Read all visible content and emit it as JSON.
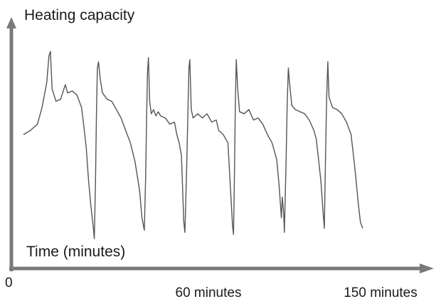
{
  "chart_data": {
    "type": "line",
    "ylabel": "Heating capacity",
    "xlabel": "Time (minutes)",
    "x_ticks": [
      {
        "label": "0",
        "value": 0
      },
      {
        "label": "60 minutes",
        "value": 60
      },
      {
        "label": "150 minutes",
        "value": 150
      }
    ],
    "y_tick_labels_shown": false,
    "grid": false,
    "axis_color": "#7a7a7a",
    "line_color": "#555555",
    "series": [
      {
        "points": [
          [
            0,
            50
          ],
          [
            3,
            52
          ],
          [
            6,
            55
          ],
          [
            8,
            63
          ],
          [
            10,
            75
          ],
          [
            11,
            88
          ],
          [
            11.6,
            90
          ],
          [
            12.3,
            72
          ],
          [
            14,
            66
          ],
          [
            16,
            67
          ],
          [
            18,
            74
          ],
          [
            19,
            70
          ],
          [
            21,
            71
          ],
          [
            23,
            69
          ],
          [
            25,
            63
          ],
          [
            26,
            54
          ],
          [
            27,
            44
          ],
          [
            28,
            28
          ],
          [
            29,
            16
          ],
          [
            30,
            6
          ],
          [
            30.5,
            0
          ],
          [
            31,
            28
          ],
          [
            31.4,
            60
          ],
          [
            31.8,
            82
          ],
          [
            32.3,
            85
          ],
          [
            33,
            77
          ],
          [
            34,
            70
          ],
          [
            36,
            67
          ],
          [
            38,
            66
          ],
          [
            40,
            62
          ],
          [
            42,
            58
          ],
          [
            44,
            52
          ],
          [
            46,
            46
          ],
          [
            48,
            37
          ],
          [
            49,
            30
          ],
          [
            50,
            23
          ],
          [
            51,
            10
          ],
          [
            52,
            4
          ],
          [
            52.6,
            30
          ],
          [
            53,
            58
          ],
          [
            53.4,
            80
          ],
          [
            53.8,
            87
          ],
          [
            54.3,
            66
          ],
          [
            55,
            60
          ],
          [
            56,
            62
          ],
          [
            57,
            59
          ],
          [
            58,
            61
          ],
          [
            59,
            59
          ],
          [
            61,
            58
          ],
          [
            63,
            55
          ],
          [
            65,
            56
          ],
          [
            66,
            50
          ],
          [
            67,
            46
          ],
          [
            68,
            40
          ],
          [
            69,
            8
          ],
          [
            69.5,
            3
          ],
          [
            70.2,
            32
          ],
          [
            70.8,
            62
          ],
          [
            71.2,
            82
          ],
          [
            71.6,
            86
          ],
          [
            72.2,
            62
          ],
          [
            73,
            58
          ],
          [
            75,
            60
          ],
          [
            77,
            58
          ],
          [
            79,
            60
          ],
          [
            81,
            56
          ],
          [
            83,
            57
          ],
          [
            84,
            52
          ],
          [
            86,
            50
          ],
          [
            88,
            46
          ],
          [
            89,
            26
          ],
          [
            90,
            6
          ],
          [
            90.4,
            2
          ],
          [
            90.8,
            30
          ],
          [
            91.2,
            65
          ],
          [
            91.6,
            86
          ],
          [
            92.2,
            72
          ],
          [
            93,
            61
          ],
          [
            95,
            60
          ],
          [
            97,
            62
          ],
          [
            99,
            57
          ],
          [
            101,
            58
          ],
          [
            103,
            55
          ],
          [
            105,
            50
          ],
          [
            107,
            46
          ],
          [
            109,
            38
          ],
          [
            110,
            26
          ],
          [
            111,
            10
          ],
          [
            111.4,
            20
          ],
          [
            112,
            12
          ],
          [
            112.3,
            3
          ],
          [
            113,
            35
          ],
          [
            113.5,
            65
          ],
          [
            114,
            82
          ],
          [
            114.5,
            75
          ],
          [
            115.5,
            64
          ],
          [
            117,
            62
          ],
          [
            119,
            61
          ],
          [
            121,
            60
          ],
          [
            123,
            57
          ],
          [
            125,
            52
          ],
          [
            126,
            48
          ],
          [
            127,
            38
          ],
          [
            128,
            28
          ],
          [
            129,
            12
          ],
          [
            129.5,
            5
          ],
          [
            130,
            40
          ],
          [
            130.5,
            68
          ],
          [
            131,
            85
          ],
          [
            131.5,
            68
          ],
          [
            133,
            63
          ],
          [
            135,
            62
          ],
          [
            137,
            60
          ],
          [
            139,
            56
          ],
          [
            141,
            50
          ],
          [
            142,
            40
          ],
          [
            143,
            30
          ],
          [
            144,
            18
          ],
          [
            145,
            8
          ],
          [
            146,
            5
          ]
        ]
      }
    ],
    "xlim": [
      0,
      150
    ],
    "ylim": [
      0,
      100
    ]
  }
}
